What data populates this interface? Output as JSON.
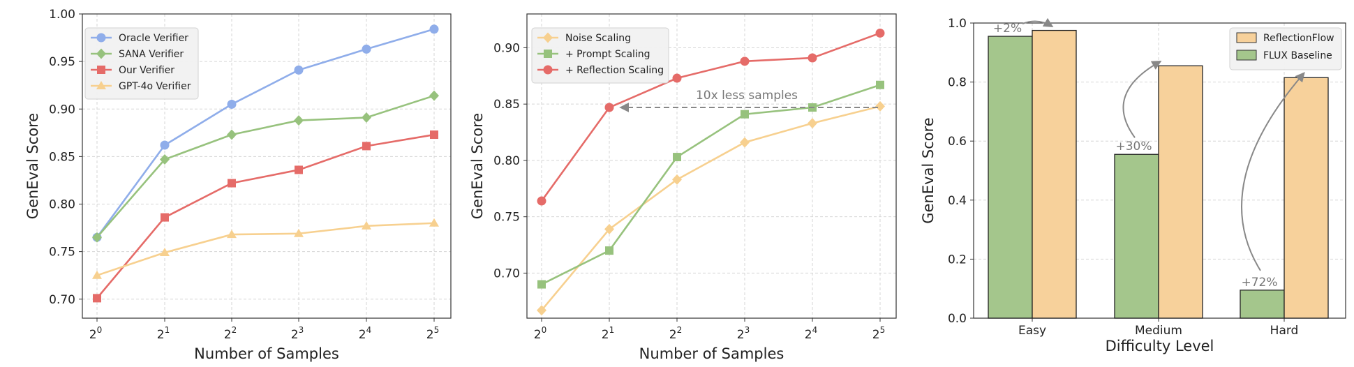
{
  "chart_data": [
    {
      "type": "line",
      "x": [
        1,
        2,
        4,
        8,
        16,
        32
      ],
      "x_tick_labels": [
        [
          "2",
          "0"
        ],
        [
          "2",
          "1"
        ],
        [
          "2",
          "2"
        ],
        [
          "2",
          "3"
        ],
        [
          "2",
          "4"
        ],
        [
          "2",
          "5"
        ]
      ],
      "xlabel": "Number of Samples",
      "ylabel": "GenEval Score",
      "ylim": [
        0.68,
        1.0
      ],
      "y_ticks": [
        "0.70",
        "0.75",
        "0.80",
        "0.85",
        "0.90",
        "0.95",
        "1.00"
      ],
      "grid": true,
      "legend_position": "top-left",
      "series": [
        {
          "name": "Oracle Verifier",
          "color": "#8fadea",
          "marker": "circle",
          "values": [
            0.765,
            0.862,
            0.905,
            0.941,
            0.963,
            0.984
          ]
        },
        {
          "name": "SANA Verifier",
          "color": "#97c27d",
          "marker": "diamond",
          "values": [
            0.765,
            0.847,
            0.873,
            0.888,
            0.891,
            0.914
          ]
        },
        {
          "name": "Our Verifier",
          "color": "#e56b68",
          "marker": "square",
          "values": [
            0.701,
            0.786,
            0.822,
            0.836,
            0.861,
            0.873
          ]
        },
        {
          "name": "GPT-4o Verifier",
          "color": "#f7d08f",
          "marker": "triangle",
          "values": [
            0.725,
            0.749,
            0.768,
            0.769,
            0.777,
            0.78
          ]
        }
      ]
    },
    {
      "type": "line",
      "x": [
        1,
        2,
        4,
        8,
        16,
        32
      ],
      "x_tick_labels": [
        [
          "2",
          "0"
        ],
        [
          "2",
          "1"
        ],
        [
          "2",
          "2"
        ],
        [
          "2",
          "3"
        ],
        [
          "2",
          "4"
        ],
        [
          "2",
          "5"
        ]
      ],
      "xlabel": "Number of Samples",
      "ylabel": "GenEval Score",
      "ylim": [
        0.66,
        0.93
      ],
      "y_ticks": [
        "0.70",
        "0.75",
        "0.80",
        "0.85",
        "0.90"
      ],
      "grid": true,
      "legend_position": "top-left",
      "annotation": {
        "text": "10x less samples",
        "from_x": 32,
        "to_x": 2,
        "y": 0.847
      },
      "series": [
        {
          "name": "Noise Scaling",
          "color": "#f7d08f",
          "marker": "diamond",
          "values": [
            0.667,
            0.739,
            0.783,
            0.816,
            0.833,
            0.848
          ]
        },
        {
          "name": "+ Prompt Scaling",
          "color": "#97c27d",
          "marker": "square",
          "values": [
            0.69,
            0.72,
            0.803,
            0.841,
            0.847,
            0.867
          ]
        },
        {
          "name": "+ Reflection Scaling",
          "color": "#e56b68",
          "marker": "circle",
          "values": [
            0.764,
            0.847,
            0.873,
            0.888,
            0.891,
            0.913
          ]
        }
      ]
    },
    {
      "type": "bar",
      "categories": [
        "Easy",
        "Medium",
        "Hard"
      ],
      "xlabel": "Difficulty Level",
      "ylabel": "GenEval Score",
      "ylim": [
        0.0,
        1.0
      ],
      "y_ticks": [
        "0.0",
        "0.2",
        "0.4",
        "0.6",
        "0.8",
        "1.0"
      ],
      "grid": true,
      "legend_position": "top-right",
      "series": [
        {
          "name": "FLUX Baseline",
          "color": "#a4c68c",
          "values": [
            0.955,
            0.555,
            0.095
          ]
        },
        {
          "name": "ReflectionFlow",
          "color": "#f7d19b",
          "values": [
            0.975,
            0.855,
            0.815
          ]
        }
      ],
      "annotations": [
        "+2%",
        "+30%",
        "+72%"
      ]
    }
  ]
}
